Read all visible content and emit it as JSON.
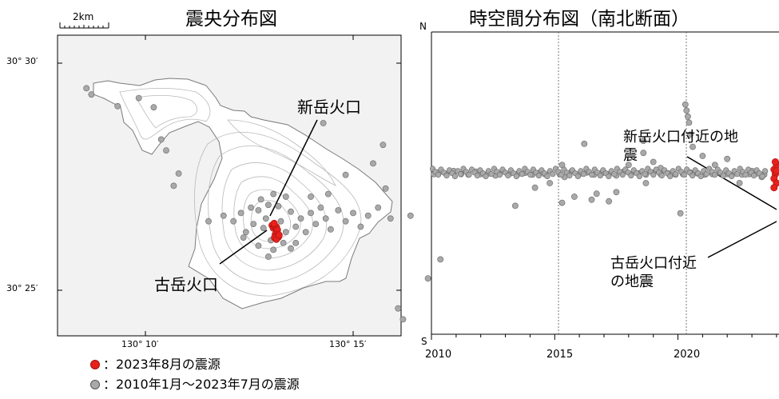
{
  "chart_data": [
    {
      "type": "scatter",
      "title": "震央分布図",
      "scale_bar_label": "2km",
      "lat_labels": [
        "30° 30′",
        "30° 25′"
      ],
      "lon_labels": [
        "130° 10′",
        "130° 15′"
      ],
      "annotations": [
        "新岳火口",
        "古岳火口"
      ],
      "series": [
        {
          "name": "2023年8月の震源",
          "color": "#e8211b",
          "points": [
            [
              130.2175,
              30.4405
            ],
            [
              130.218,
              30.4395
            ],
            [
              130.2186,
              30.4401
            ],
            [
              130.2192,
              30.4399
            ],
            [
              130.2183,
              30.4412
            ],
            [
              130.2196,
              30.4388
            ],
            [
              130.2188,
              30.4372
            ],
            [
              130.2194,
              30.4366
            ],
            [
              130.22,
              30.4362
            ],
            [
              130.2185,
              30.436
            ],
            [
              130.2192,
              30.4354
            ],
            [
              130.2203,
              30.4369
            ]
          ]
        },
        {
          "name": "2010年1月〜2023年7月の震源",
          "color": "#a9a9a9",
          "points": [
            [
              130.198,
              30.444
            ],
            [
              130.202,
              30.442
            ],
            [
              130.205,
              30.445
            ],
            [
              130.207,
              30.438
            ],
            [
              130.21,
              30.441
            ],
            [
              130.212,
              30.446
            ],
            [
              130.214,
              30.4395
            ],
            [
              130.215,
              30.443
            ],
            [
              130.216,
              30.448
            ],
            [
              130.217,
              30.435
            ],
            [
              130.221,
              30.442
            ],
            [
              130.223,
              30.438
            ],
            [
              130.225,
              30.4455
            ],
            [
              130.227,
              30.44
            ],
            [
              130.229,
              30.443
            ],
            [
              130.231,
              30.438
            ],
            [
              130.233,
              30.445
            ],
            [
              130.235,
              30.441
            ],
            [
              130.237,
              30.447
            ],
            [
              130.239,
              30.443
            ],
            [
              130.241,
              30.439
            ],
            [
              130.244,
              30.446
            ],
            [
              130.247,
              30.442
            ],
            [
              130.25,
              30.445
            ],
            [
              130.253,
              30.44
            ],
            [
              130.256,
              30.444
            ],
            [
              130.26,
              30.447
            ],
            [
              130.265,
              30.443
            ],
            [
              130.213,
              30.45
            ],
            [
              130.218,
              30.452
            ],
            [
              130.209,
              30.447
            ],
            [
              130.225,
              30.432
            ],
            [
              130.227,
              30.434
            ],
            [
              130.216,
              30.429
            ],
            [
              130.212,
              30.433
            ],
            [
              130.206,
              30.436
            ],
            [
              130.233,
              30.451
            ],
            [
              130.223,
              30.451
            ],
            [
              130.22,
              30.4475
            ],
            [
              130.192,
              30.442
            ],
            [
              130.273,
              30.444
            ],
            [
              130.24,
              30.452
            ],
            [
              130.218,
              30.4315
            ],
            [
              130.222,
              30.434
            ],
            [
              130.143,
              30.4908
            ],
            [
              130.145,
              30.4885
            ],
            [
              130.164,
              30.4872
            ],
            [
              130.1555,
              30.4842
            ],
            [
              130.17,
              30.4838
            ],
            [
              130.173,
              30.472
            ],
            [
              130.175,
              30.468
            ],
            [
              130.18,
              30.4595
            ],
            [
              130.178,
              30.455
            ],
            [
              130.258,
              30.4632
            ],
            [
              130.262,
              30.47
            ],
            [
              130.238,
              30.478
            ],
            [
              130.268,
              30.41
            ],
            [
              130.27,
              30.406
            ],
            [
              130.285,
              30.428
            ],
            [
              130.28,
              30.421
            ],
            [
              130.263,
              30.454
            ],
            [
              130.247,
              30.459
            ]
          ]
        }
      ]
    },
    {
      "type": "scatter",
      "title": "時空間分布図（南北断面）",
      "xlabel": "",
      "ylabel": "",
      "y_top_label": "N",
      "y_bottom_label": "S",
      "xlim": [
        2010,
        2024.1
      ],
      "x_ticks": [
        "2010",
        "2015",
        "2020"
      ],
      "annotations": [
        "新岳火口付近の地震",
        "古岳火口付近の地震"
      ],
      "series": [
        {
          "name": "2023年8月の震源",
          "color": "#e8211b",
          "points": [
            [
              2023.9,
              0.455
            ],
            [
              2023.95,
              0.47
            ],
            [
              2024.0,
              0.44
            ],
            [
              2023.9,
              0.485
            ],
            [
              2024.0,
              0.5
            ],
            [
              2023.95,
              0.43
            ],
            [
              2023.9,
              0.515
            ],
            [
              2024.0,
              0.46
            ]
          ]
        },
        {
          "name": "2010年1月〜2023年7月の震源",
          "color": "#a9a9a9",
          "points": [
            [
              2010.1,
              0.47
            ],
            [
              2010.3,
              0.465
            ],
            [
              2010.6,
              0.47
            ],
            [
              2010.9,
              0.46
            ],
            [
              2011.2,
              0.47
            ],
            [
              2011.5,
              0.472
            ],
            [
              2011.8,
              0.462
            ],
            [
              2012.0,
              0.47
            ],
            [
              2012.3,
              0.468
            ],
            [
              2012.6,
              0.475
            ],
            [
              2012.9,
              0.46
            ],
            [
              2013.2,
              0.468
            ],
            [
              2013.5,
              0.47
            ],
            [
              2013.8,
              0.466
            ],
            [
              2014.1,
              0.472
            ],
            [
              2014.4,
              0.465
            ],
            [
              2014.6,
              0.47
            ],
            [
              2015.2,
              0.47
            ],
            [
              2015.3,
              0.44
            ],
            [
              2015.4,
              0.48
            ],
            [
              2015.7,
              0.46
            ],
            [
              2016.0,
              0.47
            ],
            [
              2016.3,
              0.465
            ],
            [
              2016.6,
              0.472
            ],
            [
              2016.9,
              0.468
            ],
            [
              2017.2,
              0.47
            ],
            [
              2017.5,
              0.475
            ],
            [
              2017.8,
              0.462
            ],
            [
              2018.1,
              0.47
            ],
            [
              2018.4,
              0.468
            ],
            [
              2018.7,
              0.472
            ],
            [
              2019.0,
              0.465
            ],
            [
              2019.3,
              0.47
            ],
            [
              2019.6,
              0.468
            ],
            [
              2019.9,
              0.472
            ],
            [
              2020.2,
              0.47
            ],
            [
              2020.5,
              0.465
            ],
            [
              2020.8,
              0.468
            ],
            [
              2021.1,
              0.472
            ],
            [
              2021.4,
              0.47
            ],
            [
              2021.7,
              0.466
            ],
            [
              2022.0,
              0.47
            ],
            [
              2022.3,
              0.468
            ],
            [
              2022.6,
              0.472
            ],
            [
              2022.9,
              0.47
            ],
            [
              2023.2,
              0.468
            ],
            [
              2023.5,
              0.472
            ],
            [
              2013.4,
              0.575
            ],
            [
              2014.2,
              0.515
            ],
            [
              2014.8,
              0.5
            ],
            [
              2015.3,
              0.565
            ],
            [
              2015.8,
              0.545
            ],
            [
              2016.2,
              0.37
            ],
            [
              2016.5,
              0.555
            ],
            [
              2016.7,
              0.535
            ],
            [
              2017.2,
              0.56
            ],
            [
              2017.5,
              0.53
            ],
            [
              2018.0,
              0.44
            ],
            [
              2018.6,
              0.36
            ],
            [
              2018.6,
              0.4
            ],
            [
              2018.7,
              0.5
            ],
            [
              2019.0,
              0.43
            ],
            [
              2019.3,
              0.45
            ],
            [
              2020.1,
              0.6
            ],
            [
              2020.3,
              0.24
            ],
            [
              2020.35,
              0.26
            ],
            [
              2020.4,
              0.28
            ],
            [
              2020.45,
              0.3
            ],
            [
              2020.5,
              0.34
            ],
            [
              2020.6,
              0.38
            ],
            [
              2021.0,
              0.41
            ],
            [
              2021.5,
              0.44
            ],
            [
              2022.0,
              0.42
            ],
            [
              2022.5,
              0.5
            ],
            [
              2023.0,
              0.46
            ],
            [
              2023.4,
              0.48
            ]
          ]
        }
      ]
    }
  ],
  "legend": {
    "items": [
      {
        "label": "：2023年8月の震源",
        "color": "#e8211b"
      },
      {
        "label": "：2010年1月～2023年7月の震源",
        "color": "#a9a9a9"
      }
    ]
  }
}
